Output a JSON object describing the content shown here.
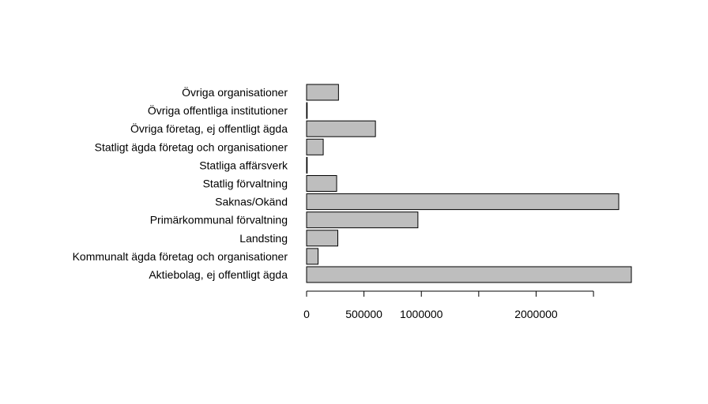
{
  "chart_data": {
    "type": "bar",
    "orientation": "horizontal",
    "title": "",
    "xlabel": "",
    "ylabel": "",
    "categories": [
      "Aktiebolag, ej offentligt ägda",
      "Kommunalt ägda företag och organisationer",
      "Landsting",
      "Primärkommunal förvaltning",
      "Saknas/Okänd",
      "Statlig förvaltning",
      "Statliga affärsverk",
      "Statligt ägda företag och organisationer",
      "Övriga företag, ej offentligt ägda",
      "Övriga offentliga institutioner",
      "Övriga organisationer"
    ],
    "values": [
      2830000,
      100000,
      272000,
      970000,
      2720000,
      262000,
      5000,
      145000,
      600000,
      5000,
      278000
    ],
    "xlim": [
      0,
      2830000
    ],
    "axis_ticks": [
      0,
      500000,
      1000000,
      1500000,
      2000000,
      2500000
    ],
    "tick_labels": [
      "0",
      "500000",
      "1000000",
      "",
      "2000000",
      ""
    ],
    "bar_color": "#bebebe",
    "border_color": "#000000",
    "grid": false,
    "legend": "none"
  }
}
